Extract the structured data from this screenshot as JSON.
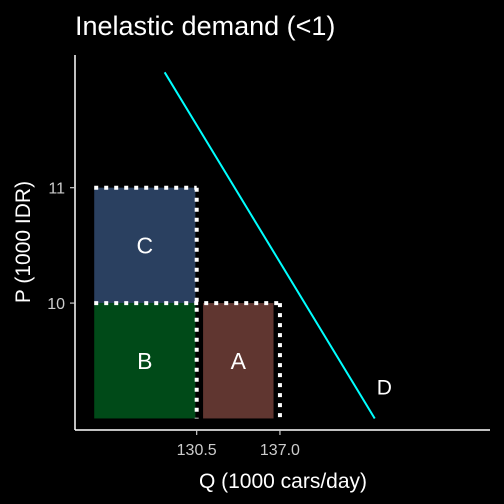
{
  "chart_data": {
    "type": "area",
    "title": "Inelastic demand (<1)",
    "xlabel": "Q (1000 cars/day)",
    "ylabel": "P (1000 IDR)",
    "x_ticks": [
      {
        "value": 130.5,
        "label": "130.5"
      },
      {
        "value": 137.0,
        "label": "137.0"
      }
    ],
    "y_ticks": [
      {
        "value": 10,
        "label": "10"
      },
      {
        "value": 11,
        "label": "11"
      }
    ],
    "xlim": [
      121.0,
      153.4
    ],
    "ylim": [
      8.9,
      12.15
    ],
    "grid": false,
    "demand_curve": {
      "label": "D",
      "color": "#00FFFF",
      "points": [
        [
          128.0,
          12.0
        ],
        [
          144.4,
          9.0
        ]
      ]
    },
    "regions": [
      {
        "label": "C",
        "x": [
          122.5,
          130.4
        ],
        "y": [
          10,
          11
        ],
        "color": "#2A4060"
      },
      {
        "label": "B",
        "x": [
          122.5,
          130.4
        ],
        "y": [
          9.0,
          10
        ],
        "color": "#004A18"
      },
      {
        "label": "A",
        "x": [
          131.0,
          136.5
        ],
        "y": [
          9.0,
          10
        ],
        "color": "#603630"
      }
    ],
    "guides": [
      {
        "points": [
          [
            122.5,
            11
          ],
          [
            130.5,
            11
          ]
        ]
      },
      {
        "points": [
          [
            122.5,
            10
          ],
          [
            137.0,
            10
          ]
        ]
      },
      {
        "points": [
          [
            130.5,
            11
          ],
          [
            130.5,
            9.0
          ]
        ]
      },
      {
        "points": [
          [
            137.0,
            10
          ],
          [
            137.0,
            9.0
          ]
        ]
      }
    ]
  }
}
